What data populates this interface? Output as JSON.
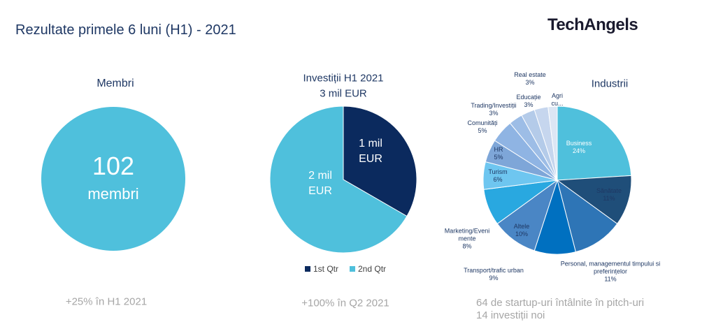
{
  "slide": {
    "title": "Rezultate primele 6 luni (H1) - 2021",
    "logo": "TechAngels",
    "members": {
      "title": "Membri",
      "number": "102",
      "unit": "membri",
      "note": "+25% în H1 2021"
    },
    "investments_note": "+100% în Q2 2021",
    "industries_notes": [
      "64 de startup-uri întâlnite în pitch-uri",
      "14 investiții noi"
    ]
  },
  "chart_data": [
    {
      "type": "pie",
      "title": "Investiții H1 2021",
      "subtitle": "3 mil EUR",
      "categories": [
        "1st Qtr",
        "2nd Qtr"
      ],
      "values": [
        1,
        2
      ],
      "value_labels": [
        "1 mil EUR",
        "2 mil EUR"
      ],
      "colors": [
        "#0b2a5e",
        "#4fc0dc"
      ],
      "legend": "bottom"
    },
    {
      "type": "pie",
      "title": "Industrii",
      "categories": [
        "Business",
        "Sănătate",
        "Personal, managementul timpului si preferințelor",
        "Transport/trafic urban",
        "Altele",
        "Marketing/Evenimente",
        "Turism",
        "HR",
        "Comunități",
        "Trading/Investiții",
        "Educație",
        "Real estate",
        "Agri cu..."
      ],
      "values": [
        24,
        11,
        11,
        9,
        10,
        8,
        6,
        5,
        5,
        3,
        3,
        3,
        2
      ],
      "value_labels": [
        "24%",
        "11%",
        "11%",
        "9%",
        "10%",
        "8%",
        "6%",
        "5%",
        "5%",
        "3%",
        "3%",
        "3%",
        null
      ],
      "colors": [
        "#4fc0dc",
        "#1f4e79",
        "#2e75b6",
        "#0070c0",
        "#4a86c5",
        "#29a8e0",
        "#6ec6f0",
        "#7ea6d8",
        "#8fb4e3",
        "#9dbde6",
        "#b4cbe9",
        "#c6d6ee",
        "#dce6f4"
      ]
    }
  ]
}
